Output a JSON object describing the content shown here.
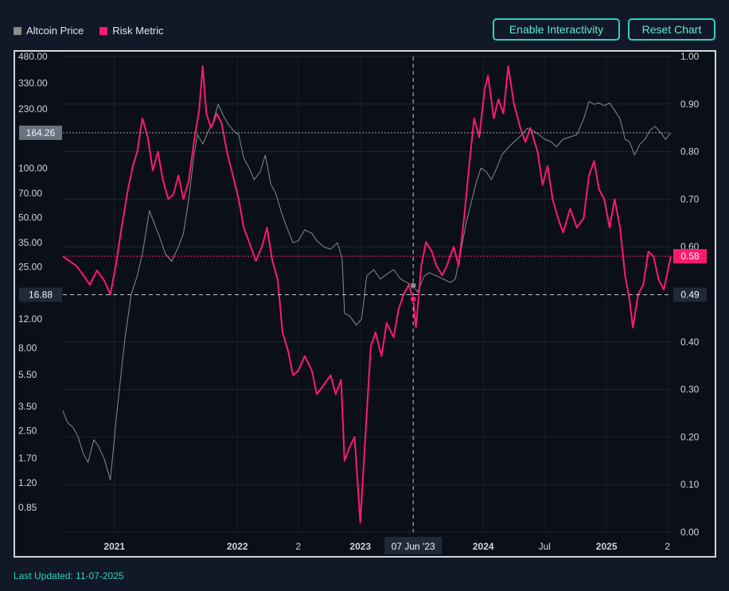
{
  "legend": [
    {
      "label": "Altcoin Price",
      "color": "#8a8a8a"
    },
    {
      "label": "Risk Metric",
      "color": "#ff1a6e"
    }
  ],
  "buttons": {
    "interactivity": "Enable Interactivity",
    "reset": "Reset Chart"
  },
  "footer": {
    "last_updated": "Last Updated: 11-07-2025"
  },
  "colors": {
    "background": "#111827",
    "plot_background": "#0b0f18",
    "accent": "#2dd4bf",
    "price_line": "#8a8a8a",
    "risk_line": "#ff1a6e"
  },
  "chart_data": {
    "type": "line",
    "x_range": [
      "2020-08-01",
      "2025-07-11"
    ],
    "x_ticks": [
      {
        "date": "2021-01-01",
        "label": "2021",
        "bold": true
      },
      {
        "date": "2022-01-01",
        "label": "2022",
        "bold": true
      },
      {
        "date": "2022-07-01",
        "label": "2",
        "bold": false
      },
      {
        "date": "2023-01-01",
        "label": "2023",
        "bold": true
      },
      {
        "date": "2024-01-01",
        "label": "2024",
        "bold": true
      },
      {
        "date": "2024-07-01",
        "label": "Jul",
        "bold": false
      },
      {
        "date": "2025-01-01",
        "label": "2025",
        "bold": true
      },
      {
        "date": "2025-07-01",
        "label": "2",
        "bold": false
      }
    ],
    "left_axis": {
      "scale": "log",
      "range": [
        0.6,
        480
      ],
      "ticks": [
        0.85,
        1.2,
        1.7,
        2.5,
        3.5,
        5.5,
        8.0,
        12.0,
        16.88,
        25.0,
        35.0,
        50.0,
        70.0,
        100.0,
        164.26,
        230.0,
        330.0,
        480.0
      ],
      "tick_labels": [
        "0.85",
        "1.20",
        "1.70",
        "2.50",
        "3.50",
        "5.50",
        "8.00",
        "12.00",
        "16.88",
        "25.00",
        "35.00",
        "50.00",
        "70.00",
        "100.00",
        "164.26",
        "230.00",
        "330.00",
        "480.00"
      ]
    },
    "right_axis": {
      "scale": "linear",
      "range": [
        0,
        1
      ],
      "ticks": [
        0.0,
        0.1,
        0.2,
        0.3,
        0.4,
        0.49,
        0.58,
        0.6,
        0.7,
        0.8,
        0.9,
        1.0
      ],
      "tick_labels": [
        "0.00",
        "0.10",
        "0.20",
        "0.30",
        "0.40",
        "0.49",
        "0.58",
        "0.60",
        "0.70",
        "0.80",
        "0.90",
        "1.00"
      ]
    },
    "series": [
      {
        "name": "Altcoin Price",
        "axis": "left",
        "points": [
          [
            "2020-08-01",
            3.3
          ],
          [
            "2020-08-15",
            2.8
          ],
          [
            "2020-09-01",
            2.6
          ],
          [
            "2020-09-15",
            2.3
          ],
          [
            "2020-10-01",
            1.8
          ],
          [
            "2020-10-15",
            1.6
          ],
          [
            "2020-11-01",
            2.2
          ],
          [
            "2020-11-15",
            2.0
          ],
          [
            "2020-12-01",
            1.7
          ],
          [
            "2020-12-20",
            1.25
          ],
          [
            "2021-01-10",
            3.5
          ],
          [
            "2021-02-01",
            9.0
          ],
          [
            "2021-02-20",
            17.0
          ],
          [
            "2021-03-10",
            22.0
          ],
          [
            "2021-03-25",
            30.0
          ],
          [
            "2021-04-15",
            55.0
          ],
          [
            "2021-05-01",
            45.0
          ],
          [
            "2021-05-15",
            38.0
          ],
          [
            "2021-06-01",
            30.0
          ],
          [
            "2021-06-20",
            27.0
          ],
          [
            "2021-07-10",
            33.0
          ],
          [
            "2021-07-25",
            40.0
          ],
          [
            "2021-08-10",
            65.0
          ],
          [
            "2021-08-25",
            120.0
          ],
          [
            "2021-09-05",
            160.0
          ],
          [
            "2021-09-20",
            140.0
          ],
          [
            "2021-10-05",
            165.0
          ],
          [
            "2021-10-20",
            190.0
          ],
          [
            "2021-11-05",
            245.0
          ],
          [
            "2021-11-20",
            210.0
          ],
          [
            "2021-12-05",
            185.0
          ],
          [
            "2021-12-20",
            170.0
          ],
          [
            "2022-01-05",
            160.0
          ],
          [
            "2022-01-20",
            115.0
          ],
          [
            "2022-02-05",
            100.0
          ],
          [
            "2022-02-20",
            85.0
          ],
          [
            "2022-03-10",
            95.0
          ],
          [
            "2022-03-25",
            120.0
          ],
          [
            "2022-04-10",
            80.0
          ],
          [
            "2022-04-25",
            70.0
          ],
          [
            "2022-05-10",
            55.0
          ],
          [
            "2022-05-25",
            45.0
          ],
          [
            "2022-06-15",
            35.0
          ],
          [
            "2022-07-01",
            36.0
          ],
          [
            "2022-07-20",
            42.0
          ],
          [
            "2022-08-10",
            40.0
          ],
          [
            "2022-08-25",
            36.0
          ],
          [
            "2022-09-15",
            33.0
          ],
          [
            "2022-10-05",
            32.0
          ],
          [
            "2022-10-25",
            35.0
          ],
          [
            "2022-11-08",
            28.0
          ],
          [
            "2022-11-15",
            13.0
          ],
          [
            "2022-12-01",
            12.5
          ],
          [
            "2022-12-20",
            11.0
          ],
          [
            "2023-01-05",
            12.0
          ],
          [
            "2023-01-20",
            22.0
          ],
          [
            "2023-02-10",
            24.0
          ],
          [
            "2023-03-01",
            21.0
          ],
          [
            "2023-03-20",
            22.5
          ],
          [
            "2023-04-10",
            24.0
          ],
          [
            "2023-05-01",
            21.0
          ],
          [
            "2023-05-20",
            20.0
          ],
          [
            "2023-06-07",
            19.2
          ],
          [
            "2023-06-20",
            17.5
          ],
          [
            "2023-07-10",
            22.0
          ],
          [
            "2023-07-25",
            23.0
          ],
          [
            "2023-08-15",
            22.0
          ],
          [
            "2023-09-05",
            21.0
          ],
          [
            "2023-09-25",
            20.0
          ],
          [
            "2023-10-10",
            21.0
          ],
          [
            "2023-10-25",
            30.0
          ],
          [
            "2023-11-10",
            45.0
          ],
          [
            "2023-11-25",
            60.0
          ],
          [
            "2023-12-10",
            80.0
          ],
          [
            "2023-12-25",
            100.0
          ],
          [
            "2024-01-10",
            95.0
          ],
          [
            "2024-01-25",
            85.0
          ],
          [
            "2024-02-10",
            100.0
          ],
          [
            "2024-02-25",
            120.0
          ],
          [
            "2024-03-10",
            130.0
          ],
          [
            "2024-03-25",
            140.0
          ],
          [
            "2024-04-10",
            150.0
          ],
          [
            "2024-04-25",
            160.0
          ],
          [
            "2024-05-10",
            175.0
          ],
          [
            "2024-05-25",
            170.0
          ],
          [
            "2024-06-15",
            160.0
          ],
          [
            "2024-07-01",
            150.0
          ],
          [
            "2024-07-20",
            145.0
          ],
          [
            "2024-08-05",
            135.0
          ],
          [
            "2024-08-25",
            150.0
          ],
          [
            "2024-09-15",
            155.0
          ],
          [
            "2024-10-05",
            160.0
          ],
          [
            "2024-10-25",
            200.0
          ],
          [
            "2024-11-10",
            255.0
          ],
          [
            "2024-11-25",
            245.0
          ],
          [
            "2024-12-10",
            250.0
          ],
          [
            "2024-12-25",
            240.0
          ],
          [
            "2025-01-10",
            250.0
          ],
          [
            "2025-01-25",
            225.0
          ],
          [
            "2025-02-10",
            200.0
          ],
          [
            "2025-02-25",
            150.0
          ],
          [
            "2025-03-10",
            145.0
          ],
          [
            "2025-03-25",
            120.0
          ],
          [
            "2025-04-10",
            140.0
          ],
          [
            "2025-04-25",
            150.0
          ],
          [
            "2025-05-10",
            170.0
          ],
          [
            "2025-05-25",
            180.0
          ],
          [
            "2025-06-10",
            165.0
          ],
          [
            "2025-06-25",
            150.0
          ],
          [
            "2025-07-11",
            164.26
          ]
        ]
      },
      {
        "name": "Risk Metric",
        "axis": "right",
        "points": [
          [
            "2020-08-01",
            0.58
          ],
          [
            "2020-08-20",
            0.57
          ],
          [
            "2020-09-10",
            0.56
          ],
          [
            "2020-10-01",
            0.54
          ],
          [
            "2020-10-20",
            0.52
          ],
          [
            "2020-11-10",
            0.55
          ],
          [
            "2020-12-01",
            0.53
          ],
          [
            "2020-12-20",
            0.5
          ],
          [
            "2021-01-05",
            0.56
          ],
          [
            "2021-01-20",
            0.63
          ],
          [
            "2021-02-10",
            0.72
          ],
          [
            "2021-02-25",
            0.77
          ],
          [
            "2021-03-10",
            0.8
          ],
          [
            "2021-03-25",
            0.87
          ],
          [
            "2021-04-10",
            0.83
          ],
          [
            "2021-04-25",
            0.76
          ],
          [
            "2021-05-10",
            0.8
          ],
          [
            "2021-05-25",
            0.74
          ],
          [
            "2021-06-10",
            0.7
          ],
          [
            "2021-06-25",
            0.71
          ],
          [
            "2021-07-10",
            0.75
          ],
          [
            "2021-07-25",
            0.7
          ],
          [
            "2021-08-10",
            0.74
          ],
          [
            "2021-08-25",
            0.82
          ],
          [
            "2021-09-10",
            0.89
          ],
          [
            "2021-09-20",
            0.98
          ],
          [
            "2021-10-01",
            0.88
          ],
          [
            "2021-10-15",
            0.85
          ],
          [
            "2021-11-01",
            0.88
          ],
          [
            "2021-11-15",
            0.86
          ],
          [
            "2021-12-01",
            0.8
          ],
          [
            "2021-12-15",
            0.76
          ],
          [
            "2022-01-05",
            0.7
          ],
          [
            "2022-01-20",
            0.64
          ],
          [
            "2022-02-10",
            0.6
          ],
          [
            "2022-02-25",
            0.57
          ],
          [
            "2022-03-15",
            0.6
          ],
          [
            "2022-03-30",
            0.64
          ],
          [
            "2022-04-15",
            0.57
          ],
          [
            "2022-05-01",
            0.53
          ],
          [
            "2022-05-15",
            0.42
          ],
          [
            "2022-06-01",
            0.38
          ],
          [
            "2022-06-15",
            0.33
          ],
          [
            "2022-07-01",
            0.34
          ],
          [
            "2022-07-20",
            0.37
          ],
          [
            "2022-08-10",
            0.34
          ],
          [
            "2022-08-25",
            0.29
          ],
          [
            "2022-09-15",
            0.31
          ],
          [
            "2022-10-05",
            0.33
          ],
          [
            "2022-10-20",
            0.29
          ],
          [
            "2022-11-05",
            0.32
          ],
          [
            "2022-11-15",
            0.15
          ],
          [
            "2022-12-01",
            0.18
          ],
          [
            "2022-12-15",
            0.2
          ],
          [
            "2023-01-01",
            0.02
          ],
          [
            "2023-01-15",
            0.19
          ],
          [
            "2023-02-01",
            0.39
          ],
          [
            "2023-02-15",
            0.42
          ],
          [
            "2023-03-05",
            0.37
          ],
          [
            "2023-03-20",
            0.44
          ],
          [
            "2023-04-10",
            0.41
          ],
          [
            "2023-04-25",
            0.47
          ],
          [
            "2023-05-10",
            0.5
          ],
          [
            "2023-05-25",
            0.52
          ],
          [
            "2023-06-07",
            0.49
          ],
          [
            "2023-06-15",
            0.43
          ],
          [
            "2023-07-01",
            0.56
          ],
          [
            "2023-07-15",
            0.61
          ],
          [
            "2023-08-01",
            0.59
          ],
          [
            "2023-08-15",
            0.56
          ],
          [
            "2023-09-01",
            0.54
          ],
          [
            "2023-09-15",
            0.56
          ],
          [
            "2023-10-05",
            0.6
          ],
          [
            "2023-10-20",
            0.56
          ],
          [
            "2023-11-05",
            0.66
          ],
          [
            "2023-11-20",
            0.77
          ],
          [
            "2023-12-05",
            0.87
          ],
          [
            "2023-12-20",
            0.83
          ],
          [
            "2024-01-05",
            0.93
          ],
          [
            "2024-01-15",
            0.96
          ],
          [
            "2024-02-01",
            0.87
          ],
          [
            "2024-02-15",
            0.91
          ],
          [
            "2024-03-01",
            0.88
          ],
          [
            "2024-03-15",
            0.98
          ],
          [
            "2024-04-01",
            0.9
          ],
          [
            "2024-04-20",
            0.85
          ],
          [
            "2024-05-05",
            0.82
          ],
          [
            "2024-05-20",
            0.85
          ],
          [
            "2024-06-10",
            0.8
          ],
          [
            "2024-06-25",
            0.73
          ],
          [
            "2024-07-10",
            0.77
          ],
          [
            "2024-07-25",
            0.7
          ],
          [
            "2024-08-10",
            0.66
          ],
          [
            "2024-08-25",
            0.63
          ],
          [
            "2024-09-15",
            0.68
          ],
          [
            "2024-10-05",
            0.64
          ],
          [
            "2024-10-25",
            0.66
          ],
          [
            "2024-11-10",
            0.75
          ],
          [
            "2024-11-25",
            0.78
          ],
          [
            "2024-12-10",
            0.72
          ],
          [
            "2024-12-25",
            0.7
          ],
          [
            "2025-01-10",
            0.64
          ],
          [
            "2025-01-25",
            0.7
          ],
          [
            "2025-02-10",
            0.64
          ],
          [
            "2025-02-25",
            0.54
          ],
          [
            "2025-03-10",
            0.49
          ],
          [
            "2025-03-20",
            0.43
          ],
          [
            "2025-04-05",
            0.5
          ],
          [
            "2025-04-20",
            0.52
          ],
          [
            "2025-05-05",
            0.59
          ],
          [
            "2025-05-20",
            0.58
          ],
          [
            "2025-06-05",
            0.53
          ],
          [
            "2025-06-20",
            0.51
          ],
          [
            "2025-07-11",
            0.58
          ]
        ]
      }
    ],
    "crosshair": {
      "date": "2023-06-07",
      "date_label": "07 Jun '23",
      "left_value": 16.88,
      "right_value": 0.49
    },
    "current_price": 164.26,
    "current_risk": 0.58,
    "grid": true,
    "legend_position": "top-left"
  }
}
